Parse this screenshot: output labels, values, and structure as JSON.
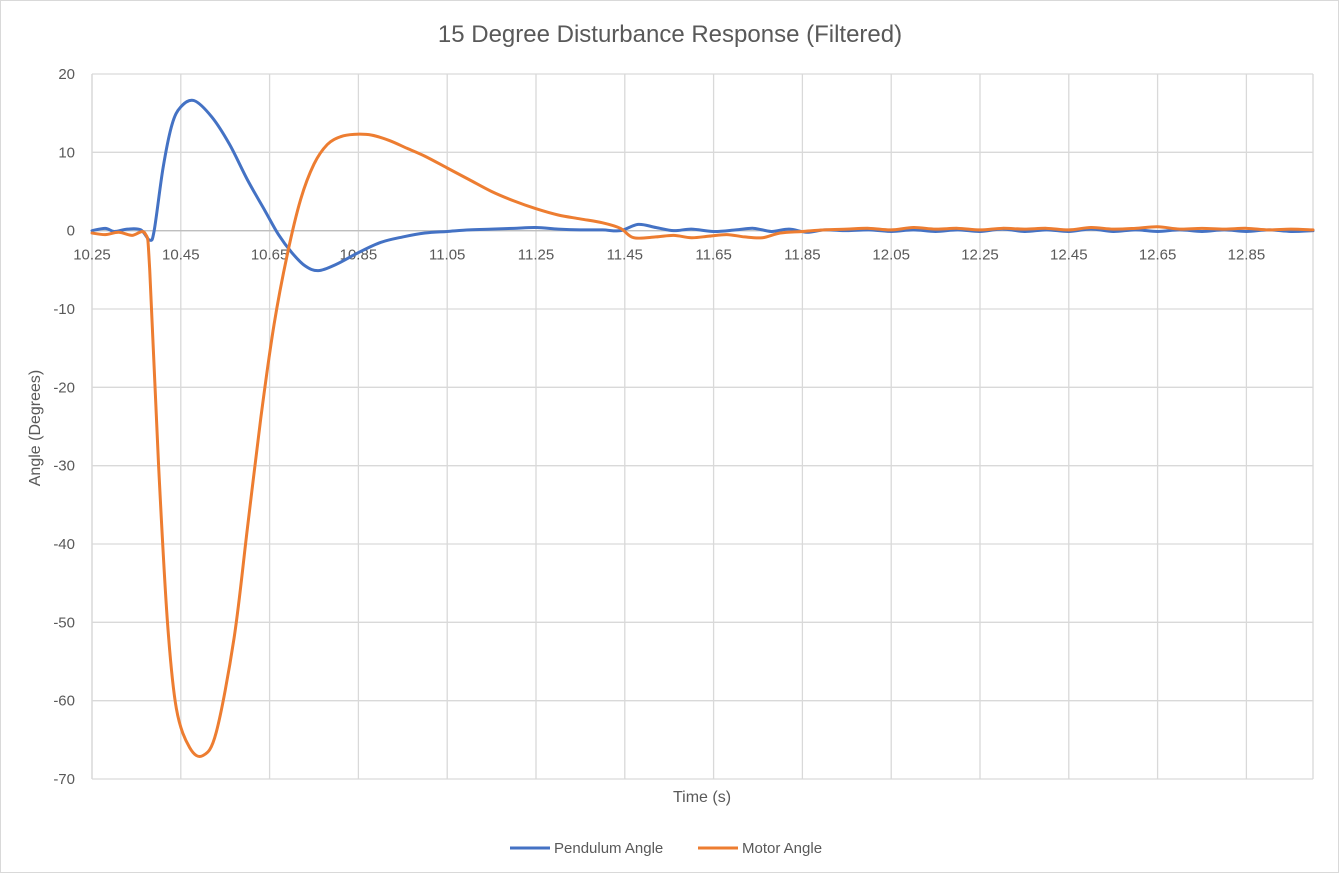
{
  "chart_data": {
    "type": "line",
    "title": "15 Degree Disturbance Response (Filtered)",
    "xlabel": "Time (s)",
    "ylabel": "Angle (Degrees)",
    "xlim": [
      10.25,
      13.0
    ],
    "ylim": [
      -70,
      20
    ],
    "x_ticks": [
      "10.25",
      "10.45",
      "10.65",
      "10.85",
      "11.05",
      "11.25",
      "11.45",
      "11.65",
      "11.85",
      "12.05",
      "12.25",
      "12.45",
      "12.65",
      "12.85"
    ],
    "y_ticks": [
      "20",
      "10",
      "0",
      "-10",
      "-20",
      "-30",
      "-40",
      "-50",
      "-60",
      "-70"
    ],
    "grid": true,
    "legend_position": "bottom",
    "series": [
      {
        "name": "Pendulum Angle",
        "color": "#4472C4",
        "points": [
          [
            10.25,
            0.0
          ],
          [
            10.28,
            0.3
          ],
          [
            10.3,
            -0.1
          ],
          [
            10.33,
            0.2
          ],
          [
            10.36,
            0.1
          ],
          [
            10.38,
            -1.2
          ],
          [
            10.39,
            0.0
          ],
          [
            10.41,
            8.0
          ],
          [
            10.43,
            13.5
          ],
          [
            10.45,
            15.8
          ],
          [
            10.48,
            16.6
          ],
          [
            10.52,
            14.5
          ],
          [
            10.56,
            11.0
          ],
          [
            10.6,
            6.5
          ],
          [
            10.64,
            2.5
          ],
          [
            10.67,
            -0.5
          ],
          [
            10.7,
            -2.8
          ],
          [
            10.73,
            -4.5
          ],
          [
            10.76,
            -5.1
          ],
          [
            10.8,
            -4.3
          ],
          [
            10.85,
            -2.8
          ],
          [
            10.9,
            -1.5
          ],
          [
            10.95,
            -0.8
          ],
          [
            11.0,
            -0.3
          ],
          [
            11.05,
            -0.1
          ],
          [
            11.1,
            0.1
          ],
          [
            11.15,
            0.2
          ],
          [
            11.2,
            0.3
          ],
          [
            11.25,
            0.4
          ],
          [
            11.3,
            0.2
          ],
          [
            11.35,
            0.1
          ],
          [
            11.4,
            0.1
          ],
          [
            11.44,
            0.0
          ],
          [
            11.48,
            0.8
          ],
          [
            11.52,
            0.4
          ],
          [
            11.56,
            0.0
          ],
          [
            11.6,
            0.2
          ],
          [
            11.65,
            -0.1
          ],
          [
            11.7,
            0.1
          ],
          [
            11.74,
            0.3
          ],
          [
            11.78,
            -0.1
          ],
          [
            11.82,
            0.2
          ],
          [
            11.86,
            -0.2
          ],
          [
            11.9,
            0.1
          ],
          [
            11.95,
            0.0
          ],
          [
            12.0,
            0.1
          ],
          [
            12.05,
            -0.1
          ],
          [
            12.1,
            0.1
          ],
          [
            12.15,
            -0.1
          ],
          [
            12.2,
            0.1
          ],
          [
            12.25,
            -0.1
          ],
          [
            12.3,
            0.2
          ],
          [
            12.35,
            -0.1
          ],
          [
            12.4,
            0.1
          ],
          [
            12.45,
            -0.1
          ],
          [
            12.5,
            0.2
          ],
          [
            12.55,
            -0.1
          ],
          [
            12.6,
            0.1
          ],
          [
            12.65,
            -0.1
          ],
          [
            12.7,
            0.1
          ],
          [
            12.75,
            -0.1
          ],
          [
            12.8,
            0.1
          ],
          [
            12.85,
            -0.1
          ],
          [
            12.9,
            0.1
          ],
          [
            12.95,
            -0.1
          ],
          [
            13.0,
            0.0
          ]
        ]
      },
      {
        "name": "Motor Angle",
        "color": "#ED7D31",
        "points": [
          [
            10.25,
            -0.3
          ],
          [
            10.28,
            -0.5
          ],
          [
            10.31,
            -0.2
          ],
          [
            10.34,
            -0.6
          ],
          [
            10.37,
            -0.4
          ],
          [
            10.38,
            -5.0
          ],
          [
            10.4,
            -30.0
          ],
          [
            10.42,
            -50.0
          ],
          [
            10.44,
            -61.0
          ],
          [
            10.47,
            -66.0
          ],
          [
            10.5,
            -67.0
          ],
          [
            10.53,
            -64.0
          ],
          [
            10.57,
            -52.0
          ],
          [
            10.6,
            -38.0
          ],
          [
            10.63,
            -24.0
          ],
          [
            10.66,
            -12.0
          ],
          [
            10.69,
            -3.0
          ],
          [
            10.72,
            4.0
          ],
          [
            10.75,
            8.5
          ],
          [
            10.78,
            11.0
          ],
          [
            10.81,
            12.0
          ],
          [
            10.84,
            12.3
          ],
          [
            10.88,
            12.2
          ],
          [
            10.92,
            11.5
          ],
          [
            10.96,
            10.5
          ],
          [
            11.0,
            9.5
          ],
          [
            11.05,
            8.0
          ],
          [
            11.1,
            6.5
          ],
          [
            11.15,
            5.0
          ],
          [
            11.2,
            3.8
          ],
          [
            11.25,
            2.8
          ],
          [
            11.3,
            2.0
          ],
          [
            11.35,
            1.5
          ],
          [
            11.4,
            1.0
          ],
          [
            11.44,
            0.3
          ],
          [
            11.47,
            -0.9
          ],
          [
            11.52,
            -0.8
          ],
          [
            11.56,
            -0.6
          ],
          [
            11.6,
            -0.9
          ],
          [
            11.64,
            -0.7
          ],
          [
            11.68,
            -0.5
          ],
          [
            11.72,
            -0.8
          ],
          [
            11.76,
            -0.9
          ],
          [
            11.8,
            -0.3
          ],
          [
            11.85,
            -0.1
          ],
          [
            11.9,
            0.1
          ],
          [
            11.95,
            0.2
          ],
          [
            12.0,
            0.3
          ],
          [
            12.05,
            0.1
          ],
          [
            12.1,
            0.4
          ],
          [
            12.15,
            0.2
          ],
          [
            12.2,
            0.3
          ],
          [
            12.25,
            0.1
          ],
          [
            12.3,
            0.3
          ],
          [
            12.35,
            0.2
          ],
          [
            12.4,
            0.3
          ],
          [
            12.45,
            0.1
          ],
          [
            12.5,
            0.4
          ],
          [
            12.55,
            0.2
          ],
          [
            12.6,
            0.3
          ],
          [
            12.65,
            0.5
          ],
          [
            12.7,
            0.2
          ],
          [
            12.75,
            0.3
          ],
          [
            12.8,
            0.2
          ],
          [
            12.85,
            0.3
          ],
          [
            12.9,
            0.1
          ],
          [
            12.95,
            0.2
          ],
          [
            13.0,
            0.1
          ]
        ]
      }
    ]
  }
}
